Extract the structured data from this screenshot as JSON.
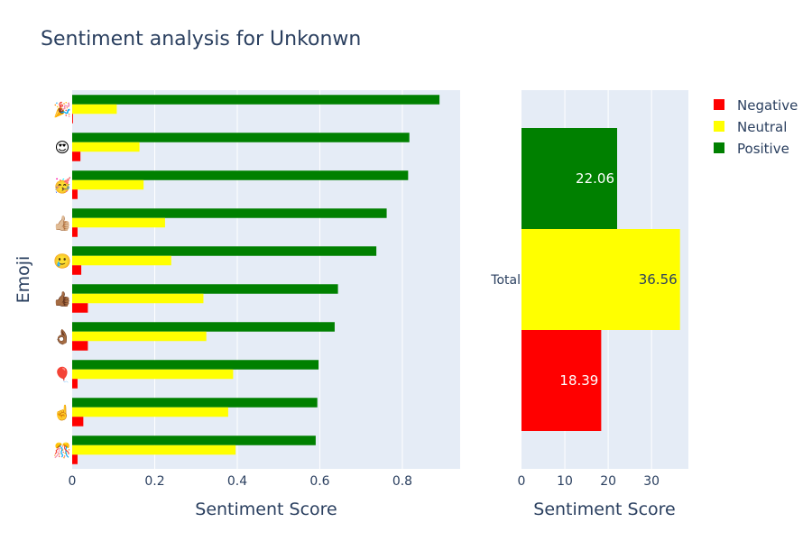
{
  "chart_data": [
    {
      "type": "bar",
      "orientation": "horizontal",
      "title": "Sentiment analysis for Unkonwn",
      "xlabel": "Sentiment Score",
      "ylabel": "Emoji",
      "xlim": [
        0,
        0.94
      ],
      "xticks": [
        0,
        0.2,
        0.4,
        0.6,
        0.8
      ],
      "xtick_labels": [
        "0",
        "0.2",
        "0.4",
        "0.6",
        "0.8"
      ],
      "grid": true,
      "categories": [
        "🎉",
        "😍",
        "🥳",
        "👍🏼",
        "🥲",
        "👍🏾",
        "👌🏾",
        "🎈",
        "☝️",
        "🎊"
      ],
      "series": [
        {
          "name": "Negative",
          "color": "#ff0000",
          "values": [
            0.002,
            0.02,
            0.013,
            0.013,
            0.022,
            0.038,
            0.038,
            0.013,
            0.027,
            0.013
          ]
        },
        {
          "name": "Neutral",
          "color": "#ffff00",
          "values": [
            0.108,
            0.163,
            0.173,
            0.225,
            0.24,
            0.318,
            0.325,
            0.39,
            0.378,
            0.396
          ]
        },
        {
          "name": "Positive",
          "color": "#008000",
          "values": [
            0.89,
            0.817,
            0.814,
            0.762,
            0.737,
            0.644,
            0.636,
            0.597,
            0.594,
            0.59
          ]
        }
      ]
    },
    {
      "type": "bar",
      "orientation": "horizontal",
      "xlabel": "Sentiment Score",
      "xlim": [
        0,
        38.5
      ],
      "xticks": [
        0,
        10,
        20,
        30
      ],
      "xtick_labels": [
        "0",
        "10",
        "20",
        "30"
      ],
      "grid": true,
      "categories": [
        "Total"
      ],
      "series": [
        {
          "name": "Negative",
          "color": "#ff0000",
          "values": [
            18.39
          ],
          "label": "18.39",
          "label_color": "#ffffff"
        },
        {
          "name": "Neutral",
          "color": "#ffff00",
          "values": [
            36.56
          ],
          "label": "36.56",
          "label_color": "#2a3f5f"
        },
        {
          "name": "Positive",
          "color": "#008000",
          "values": [
            22.06
          ],
          "label": "22.06",
          "label_color": "#ffffff"
        }
      ]
    }
  ],
  "legend": {
    "placement": "top-right",
    "items": [
      {
        "name": "Negative",
        "color": "#ff0000"
      },
      {
        "name": "Neutral",
        "color": "#ffff00"
      },
      {
        "name": "Positive",
        "color": "#008000"
      }
    ]
  }
}
